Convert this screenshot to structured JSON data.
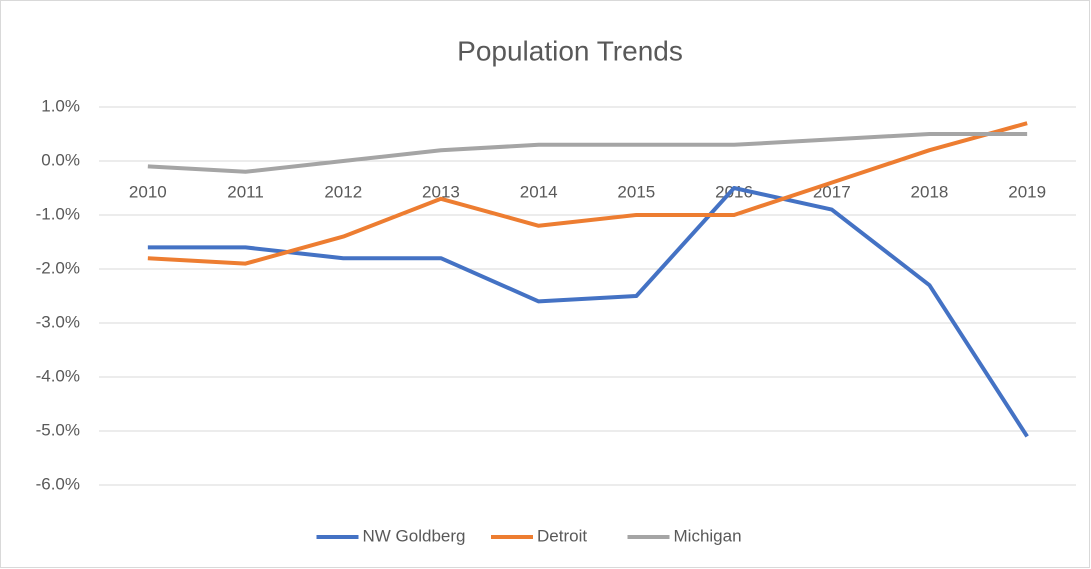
{
  "chart_data": {
    "type": "line",
    "title": "Population Trends",
    "categories": [
      "2010",
      "2011",
      "2012",
      "2013",
      "2014",
      "2015",
      "2016",
      "2017",
      "2018",
      "2019"
    ],
    "series": [
      {
        "name": "NW Goldberg",
        "color": "#4472c4",
        "values": [
          -1.6,
          -1.6,
          -1.8,
          -1.8,
          -2.6,
          -2.5,
          -0.5,
          -0.9,
          -2.3,
          -5.1
        ]
      },
      {
        "name": "Detroit",
        "color": "#ed7d31",
        "values": [
          -1.8,
          -1.9,
          -1.4,
          -0.7,
          -1.2,
          -1.0,
          -1.0,
          -0.4,
          0.2,
          0.7
        ]
      },
      {
        "name": "Michigan",
        "color": "#a5a5a5",
        "values": [
          -0.1,
          -0.2,
          0.0,
          0.2,
          0.3,
          0.3,
          0.3,
          0.4,
          0.5,
          0.5
        ]
      }
    ],
    "ylim": [
      -6,
      1
    ],
    "yticks": [
      {
        "value": 1,
        "label": "1.0%"
      },
      {
        "value": 0,
        "label": "0.0%"
      },
      {
        "value": -1,
        "label": "-1.0%"
      },
      {
        "value": -2,
        "label": "-2.0%"
      },
      {
        "value": -3,
        "label": "-3.0%"
      },
      {
        "value": -4,
        "label": "-4.0%"
      },
      {
        "value": -5,
        "label": "-5.0%"
      },
      {
        "value": -6,
        "label": "-6.0%"
      }
    ],
    "grid": true,
    "legend": "bottom"
  }
}
